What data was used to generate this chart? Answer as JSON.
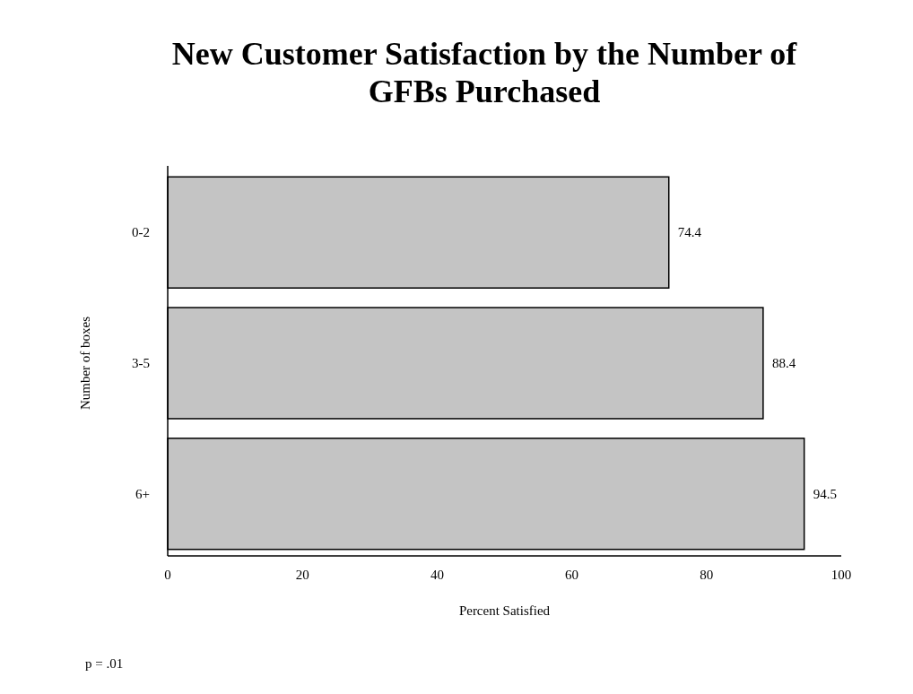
{
  "chart_data": {
    "type": "bar",
    "orientation": "horizontal",
    "title": "New Customer Satisfaction by the Number of GFBs Purchased",
    "xlabel": "Percent Satisfied",
    "ylabel": "Number of boxes",
    "categories": [
      "0-2",
      "3-5",
      "6+"
    ],
    "values": [
      74.4,
      88.4,
      94.5
    ],
    "color": "#c4c4c4",
    "data_labels": true,
    "xlim": [
      0,
      100
    ],
    "xticks": [
      0,
      20,
      40,
      60,
      80,
      100
    ],
    "grid": false,
    "annotations": [
      "p = .01"
    ]
  }
}
